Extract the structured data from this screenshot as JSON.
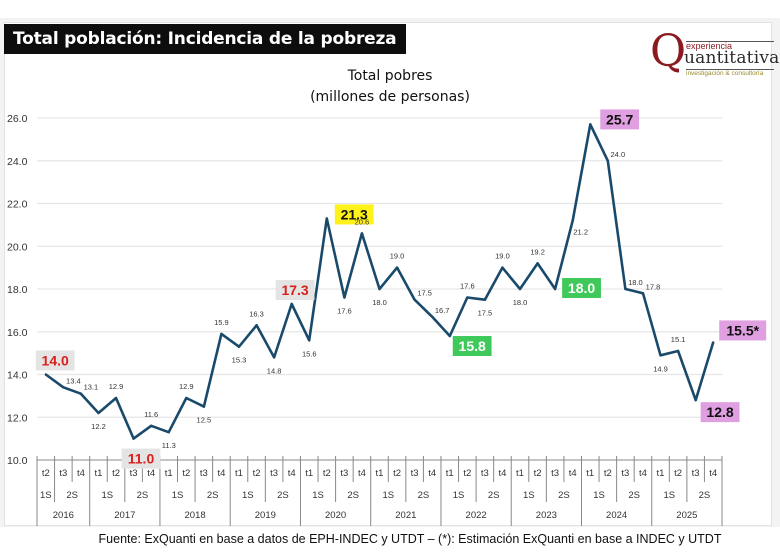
{
  "header": {
    "banner_title": "Total población: Incidencia de la pobreza",
    "logo": {
      "letter": "Q",
      "top_text": "experiencia",
      "main_text": "uantitativa",
      "sub_text": "investigación & consultoría"
    }
  },
  "footer": {
    "source": "Fuente: ExQuanti en base a datos de EPH-INDEC y UTDT – (*): Estimación ExQuanti en base a INDEC y UTDT"
  },
  "colors": {
    "line": "#1a4a6b",
    "grid": "#e6e6e6",
    "highlight_red_text": "#d8201c",
    "highlight_red_bg": "#e4e4e4",
    "highlight_yellow_bg": "#fff21a",
    "highlight_green_bg": "#3ec95a",
    "highlight_pink_bg": "#df9fe0"
  },
  "chart_data": {
    "type": "line",
    "title": "Total pobres",
    "subtitle": "(millones de personas)",
    "xlabel": "",
    "ylabel": "",
    "ylim": [
      10.0,
      26.0
    ],
    "yticks": [
      "10.0",
      "12.0",
      "14.0",
      "16.0",
      "18.0",
      "20.0",
      "22.0",
      "24.0",
      "26.0"
    ],
    "grid": true,
    "legend": "none",
    "x_levels": {
      "quarters": [
        "t2",
        "t3",
        "t4",
        "t1",
        "t2",
        "t3",
        "t4",
        "t1",
        "t2",
        "t3",
        "t4",
        "t1",
        "t2",
        "t3",
        "t4",
        "t1",
        "t2",
        "t3",
        "t4",
        "t1",
        "t2",
        "t3",
        "t4",
        "t1",
        "t2",
        "t3",
        "t4",
        "t1",
        "t2",
        "t3",
        "t4",
        "t1",
        "t2",
        "t3",
        "t4",
        "t1",
        "t2",
        "t3",
        "t4"
      ],
      "semesters": [
        {
          "label": "1S",
          "span": 1
        },
        {
          "label": "2S",
          "span": 2
        },
        {
          "label": "1S",
          "span": 2
        },
        {
          "label": "2S",
          "span": 2
        },
        {
          "label": "1S",
          "span": 2
        },
        {
          "label": "2S",
          "span": 2
        },
        {
          "label": "1S",
          "span": 2
        },
        {
          "label": "2S",
          "span": 2
        },
        {
          "label": "1S",
          "span": 2
        },
        {
          "label": "2S",
          "span": 2
        },
        {
          "label": "1S",
          "span": 2
        },
        {
          "label": "2S",
          "span": 2
        },
        {
          "label": "1S",
          "span": 2
        },
        {
          "label": "2S",
          "span": 2
        },
        {
          "label": "1S",
          "span": 2
        },
        {
          "label": "2S",
          "span": 2
        },
        {
          "label": "1S",
          "span": 2
        },
        {
          "label": "2S",
          "span": 2
        },
        {
          "label": "1S",
          "span": 2
        },
        {
          "label": "2S",
          "span": 2
        }
      ],
      "years": [
        {
          "label": "2016",
          "span": 3
        },
        {
          "label": "2017",
          "span": 4
        },
        {
          "label": "2018",
          "span": 4
        },
        {
          "label": "2019",
          "span": 4
        },
        {
          "label": "2020",
          "span": 4
        },
        {
          "label": "2021",
          "span": 4
        },
        {
          "label": "2022",
          "span": 4
        },
        {
          "label": "2023",
          "span": 4
        },
        {
          "label": "2024",
          "span": 4
        },
        {
          "label": "2025",
          "span": 4
        }
      ]
    },
    "series": [
      {
        "name": "Total pobres",
        "values": [
          14.0,
          13.4,
          13.1,
          12.2,
          12.9,
          11.0,
          11.6,
          11.3,
          12.9,
          12.5,
          15.9,
          15.3,
          16.3,
          14.8,
          17.3,
          15.6,
          21.3,
          17.6,
          20.6,
          18.0,
          19.0,
          17.5,
          16.7,
          15.8,
          17.6,
          17.5,
          19.0,
          18.0,
          19.2,
          18.0,
          21.2,
          25.7,
          24.0,
          18.0,
          17.8,
          14.9,
          15.1,
          12.8,
          15.5
        ],
        "labels": [
          "14.0",
          "13.4",
          "13.1",
          "12.2",
          "12.9",
          "11.0",
          "11.6",
          "11.3",
          "12.9",
          "12.5",
          "15.9",
          "15.3",
          "16.3",
          "14.8",
          "17.3",
          "15.6",
          "21.3",
          "17.6",
          "20.6",
          "18.0",
          "19.0",
          "17.5",
          "16.7",
          "15.8",
          "17.6",
          "17.5",
          "19.0",
          "18.0",
          "19.2",
          "18.0",
          "21.2",
          "25.7",
          "24.0",
          "18.0",
          "17.8",
          "14.9",
          "15.1",
          "12.8",
          "15.5*"
        ]
      }
    ],
    "highlights": [
      {
        "index": 0,
        "style": "red"
      },
      {
        "index": 5,
        "style": "red"
      },
      {
        "index": 14,
        "style": "red"
      },
      {
        "index": 16,
        "style": "yellow"
      },
      {
        "index": 23,
        "style": "green"
      },
      {
        "index": 29,
        "style": "green"
      },
      {
        "index": 31,
        "style": "pink"
      },
      {
        "index": 37,
        "style": "pink"
      },
      {
        "index": 38,
        "style": "pink"
      }
    ],
    "annotations": [
      "(*): Estimación ExQuanti en base a INDEC y UTDT"
    ]
  }
}
